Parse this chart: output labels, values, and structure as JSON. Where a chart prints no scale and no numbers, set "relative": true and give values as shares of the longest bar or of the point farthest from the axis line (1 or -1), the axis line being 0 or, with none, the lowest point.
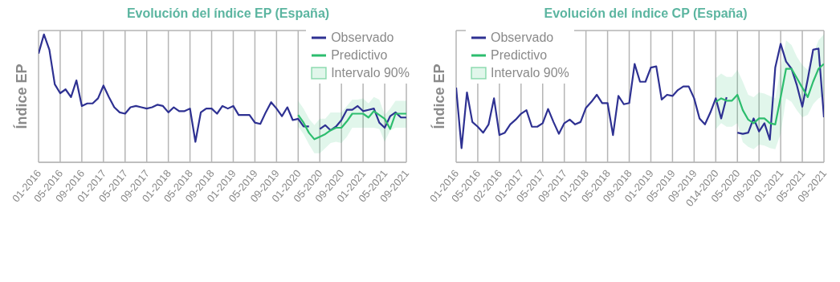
{
  "chart_data": [
    {
      "type": "line",
      "title": "Evolución del índice EP (España)",
      "ylabel": "Índice EP",
      "relative": true,
      "grid": true,
      "legend": "top right",
      "annotations": [
        "Intervalo 90%"
      ],
      "categories": [
        "01-2016",
        null,
        null,
        null,
        "05-2016",
        null,
        null,
        null,
        "09-2016",
        null,
        null,
        null,
        "01-2017",
        null,
        null,
        null,
        "05-2017",
        null,
        null,
        null,
        "09-2017",
        null,
        null,
        null,
        "01-2018",
        null,
        null,
        null,
        "05-2018",
        null,
        null,
        null,
        "09-2018",
        null,
        null,
        null,
        "01-2019",
        null,
        null,
        null,
        "05-2019",
        null,
        null,
        null,
        "09-2019",
        null,
        null,
        null,
        "01-2020",
        null,
        null,
        null,
        "05-2020",
        null,
        null,
        null,
        "09-2020",
        null,
        null,
        null,
        "01-2021",
        null,
        null,
        null,
        "05-2021",
        null,
        null,
        null,
        "09-2021"
      ],
      "series": [
        {
          "name": "Observado",
          "color": "#2e3192",
          "values": [
            0.85,
            1.0,
            0.88,
            0.61,
            0.54,
            0.57,
            0.51,
            0.64,
            0.44,
            0.46,
            0.46,
            0.5,
            0.6,
            0.51,
            0.43,
            0.39,
            0.38,
            0.43,
            0.44,
            0.43,
            0.42,
            0.43,
            0.45,
            0.44,
            0.39,
            0.43,
            0.4,
            0.4,
            0.42,
            0.16,
            0.39,
            0.42,
            0.42,
            0.38,
            0.44,
            0.42,
            0.44,
            0.37,
            0.37,
            0.37,
            0.31,
            0.3,
            0.39,
            0.47,
            0.42,
            0.36,
            0.43,
            0.33,
            0.34,
            0.28,
            0.28,
            null,
            0.26,
            0.29,
            0.25,
            0.28,
            0.33,
            0.41,
            0.41,
            0.44,
            0.4,
            0.41,
            0.42,
            0.31,
            0.27,
            0.36,
            0.39,
            0.35,
            0.35
          ]
        },
        {
          "name": "Predictivo",
          "color": "#2dbd6e",
          "values": [
            null,
            null,
            null,
            null,
            null,
            null,
            null,
            null,
            null,
            null,
            null,
            null,
            null,
            null,
            null,
            null,
            null,
            null,
            null,
            null,
            null,
            null,
            null,
            null,
            null,
            null,
            null,
            null,
            null,
            null,
            null,
            null,
            null,
            null,
            null,
            null,
            null,
            null,
            null,
            null,
            null,
            null,
            null,
            null,
            null,
            null,
            null,
            null,
            0.37,
            0.31,
            0.23,
            0.18,
            0.2,
            0.22,
            0.25,
            0.27,
            0.27,
            0.32,
            0.38,
            0.38,
            0.38,
            0.35,
            0.4,
            0.37,
            0.34,
            0.26,
            0.38,
            0.38,
            0.38
          ],
          "lower": [
            null,
            null,
            null,
            null,
            null,
            null,
            null,
            null,
            null,
            null,
            null,
            null,
            null,
            null,
            null,
            null,
            null,
            null,
            null,
            null,
            null,
            null,
            null,
            null,
            null,
            null,
            null,
            null,
            null,
            null,
            null,
            null,
            null,
            null,
            null,
            null,
            null,
            null,
            null,
            null,
            null,
            null,
            null,
            null,
            null,
            null,
            null,
            null,
            0.28,
            0.22,
            0.14,
            0.07,
            0.07,
            0.11,
            0.15,
            0.16,
            0.15,
            0.2,
            0.27,
            0.27,
            0.27,
            0.27,
            0.27,
            0.26,
            0.16,
            0.25,
            0.27,
            0.27,
            0.27
          ],
          "upper": [
            null,
            null,
            null,
            null,
            null,
            null,
            null,
            null,
            null,
            null,
            null,
            null,
            null,
            null,
            null,
            null,
            null,
            null,
            null,
            null,
            null,
            null,
            null,
            null,
            null,
            null,
            null,
            null,
            null,
            null,
            null,
            null,
            null,
            null,
            null,
            null,
            null,
            null,
            null,
            null,
            null,
            null,
            null,
            null,
            null,
            null,
            null,
            null,
            0.48,
            0.42,
            0.34,
            0.29,
            0.34,
            0.34,
            0.39,
            0.39,
            0.39,
            0.44,
            0.49,
            0.49,
            0.5,
            0.46,
            0.51,
            0.49,
            0.37,
            0.42,
            0.48,
            0.48,
            0.48
          ]
        }
      ]
    },
    {
      "type": "line",
      "title": "Evolución del índice CP (España)",
      "ylabel": "Índice EP",
      "relative": true,
      "grid": true,
      "legend": "top left",
      "annotations": [
        "Intervalo 90%"
      ],
      "categories": [
        "01-2016",
        null,
        null,
        null,
        "05-2016",
        null,
        null,
        null,
        "02-2016",
        null,
        null,
        null,
        "01-2017",
        null,
        null,
        null,
        "05-2017",
        null,
        null,
        null,
        "09-2017",
        null,
        null,
        null,
        "01-2018",
        null,
        null,
        null,
        "05-2018",
        null,
        null,
        null,
        "09-2018",
        null,
        null,
        null,
        "01-2019",
        null,
        null,
        null,
        "05-2019",
        null,
        null,
        null,
        "09-2019",
        null,
        null,
        null,
        "014-2020",
        null,
        null,
        null,
        "05-2020",
        null,
        null,
        null,
        "09-2020",
        null,
        null,
        null,
        "01-2021",
        null,
        null,
        null,
        "05-2021",
        null,
        null,
        null,
        "09-2021"
      ],
      "series": [
        {
          "name": "Observado",
          "color": "#2e3192",
          "values": [
            0.63,
            0.12,
            0.59,
            0.34,
            0.3,
            0.25,
            0.32,
            0.54,
            0.23,
            0.25,
            0.32,
            0.36,
            0.41,
            0.44,
            0.3,
            0.3,
            0.33,
            0.45,
            0.34,
            0.24,
            0.33,
            0.36,
            0.32,
            0.34,
            0.46,
            0.51,
            0.57,
            0.5,
            0.5,
            0.23,
            0.56,
            0.49,
            0.5,
            0.83,
            0.68,
            0.68,
            0.8,
            0.81,
            0.53,
            0.57,
            0.56,
            0.61,
            0.64,
            0.64,
            0.54,
            0.37,
            0.32,
            0.42,
            0.54,
            0.37,
            0.55,
            null,
            0.25,
            0.24,
            0.25,
            0.37,
            0.26,
            0.33,
            0.19,
            0.8,
            1.0,
            0.85,
            0.79,
            0.65,
            0.47,
            0.7,
            0.95,
            0.96,
            0.38
          ]
        },
        {
          "name": "Predictivo",
          "color": "#2dbd6e",
          "values": [
            null,
            null,
            null,
            null,
            null,
            null,
            null,
            null,
            null,
            null,
            null,
            null,
            null,
            null,
            null,
            null,
            null,
            null,
            null,
            null,
            null,
            null,
            null,
            null,
            null,
            null,
            null,
            null,
            null,
            null,
            null,
            null,
            null,
            null,
            null,
            null,
            null,
            null,
            null,
            null,
            null,
            null,
            null,
            null,
            null,
            null,
            null,
            null,
            0.51,
            0.54,
            0.52,
            0.52,
            0.57,
            0.44,
            0.36,
            0.33,
            0.37,
            0.37,
            0.33,
            0.32,
            0.55,
            0.79,
            0.79,
            0.71,
            0.63,
            0.55,
            0.68,
            0.79,
            0.83
          ],
          "lower": [
            null,
            null,
            null,
            null,
            null,
            null,
            null,
            null,
            null,
            null,
            null,
            null,
            null,
            null,
            null,
            null,
            null,
            null,
            null,
            null,
            null,
            null,
            null,
            null,
            null,
            null,
            null,
            null,
            null,
            null,
            null,
            null,
            null,
            null,
            null,
            null,
            null,
            null,
            null,
            null,
            null,
            null,
            null,
            null,
            null,
            null,
            null,
            null,
            0.28,
            0.33,
            0.3,
            0.3,
            0.33,
            0.17,
            0.13,
            0.11,
            0.15,
            0.14,
            0.12,
            0.11,
            0.24,
            0.54,
            0.51,
            0.44,
            0.38,
            0.4,
            0.49,
            0.54,
            0.56
          ],
          "upper": [
            null,
            null,
            null,
            null,
            null,
            null,
            null,
            null,
            null,
            null,
            null,
            null,
            null,
            null,
            null,
            null,
            null,
            null,
            null,
            null,
            null,
            null,
            null,
            null,
            null,
            null,
            null,
            null,
            null,
            null,
            null,
            null,
            null,
            null,
            null,
            null,
            null,
            null,
            null,
            null,
            null,
            null,
            null,
            null,
            null,
            null,
            null,
            null,
            0.71,
            0.75,
            0.72,
            0.72,
            0.78,
            0.68,
            0.57,
            0.55,
            0.59,
            0.58,
            0.56,
            0.54,
            0.79,
            1.03,
            0.99,
            0.89,
            0.82,
            0.78,
            0.91,
            1.03,
            1.08
          ]
        }
      ]
    }
  ]
}
